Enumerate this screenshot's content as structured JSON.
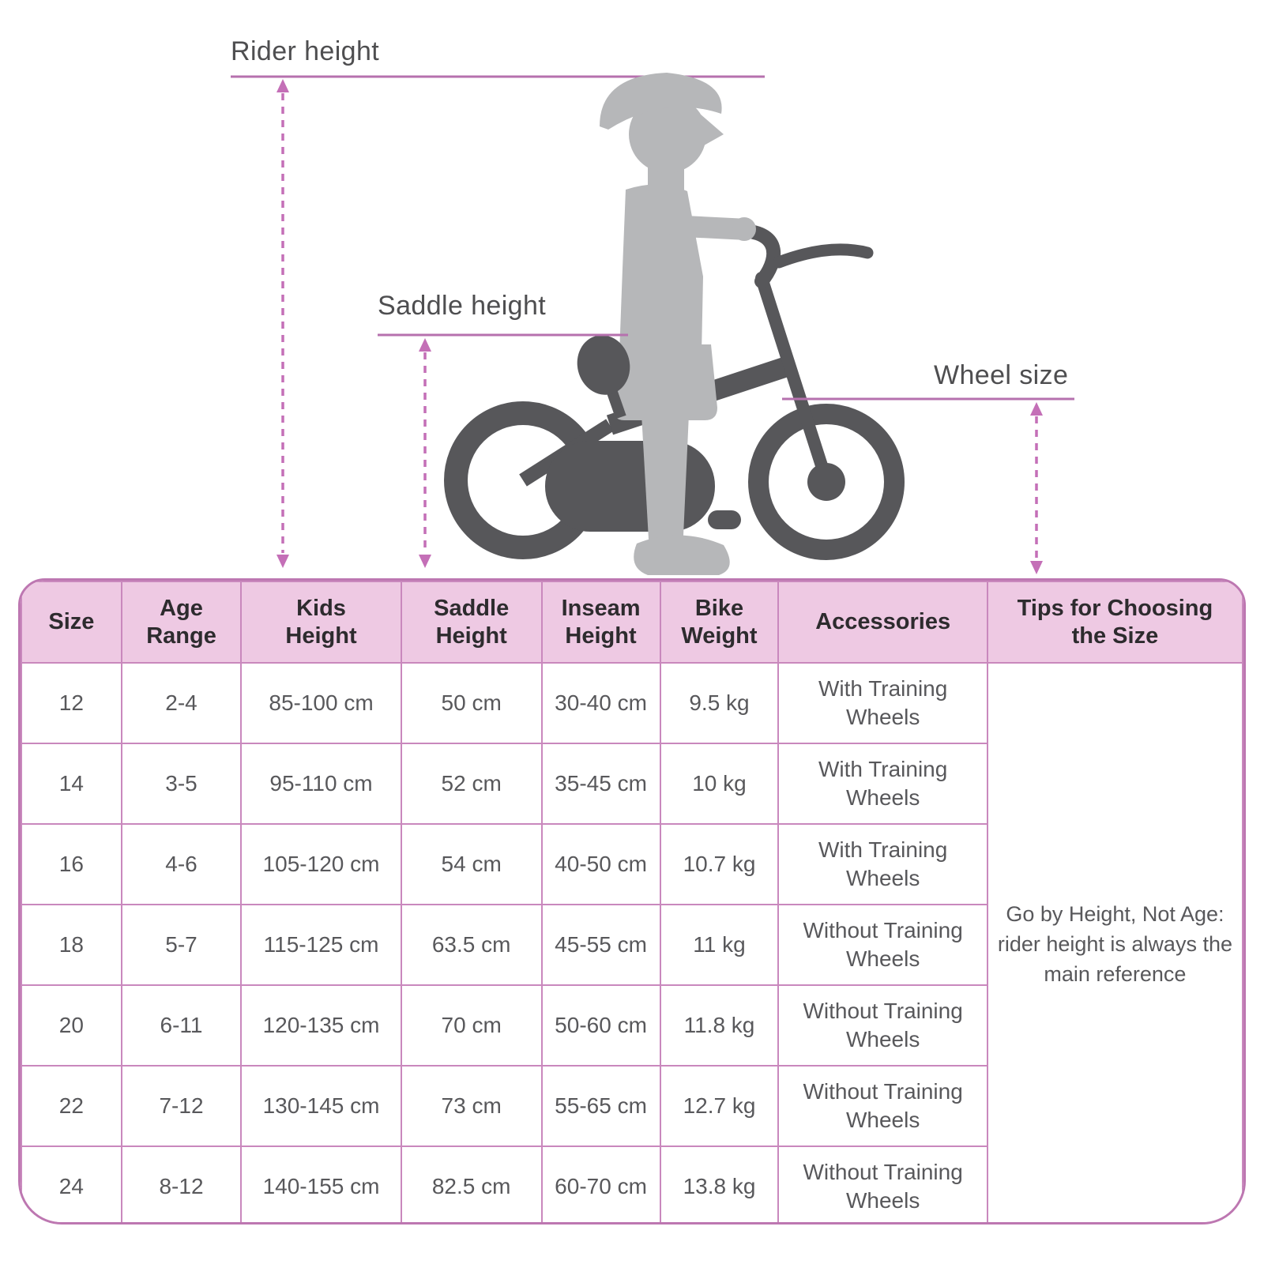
{
  "illustration": {
    "labels": {
      "rider": "Rider height",
      "saddle": "Saddle height",
      "wheel": "Wheel size"
    }
  },
  "table": {
    "columns": [
      {
        "key": "size",
        "label": "Size"
      },
      {
        "key": "age-range",
        "label": "Age\nRange"
      },
      {
        "key": "kids-height",
        "label": "Kids\nHeight"
      },
      {
        "key": "saddle-height",
        "label": "Saddle\nHeight"
      },
      {
        "key": "inseam-height",
        "label": "Inseam\nHeight"
      },
      {
        "key": "bike-weight",
        "label": "Bike\nWeight"
      },
      {
        "key": "accessories",
        "label": "Accessories"
      },
      {
        "key": "tips",
        "label": "Tips for Choosing\nthe Size"
      }
    ],
    "rows": [
      [
        "12",
        "2-4",
        "85-100 cm",
        "50 cm",
        "30-40 cm",
        "9.5 kg",
        "With Training\nWheels"
      ],
      [
        "14",
        "3-5",
        "95-110 cm",
        "52 cm",
        "35-45 cm",
        "10 kg",
        "With Training\nWheels"
      ],
      [
        "16",
        "4-6",
        "105-120 cm",
        "54 cm",
        "40-50 cm",
        "10.7 kg",
        "With Training\nWheels"
      ],
      [
        "18",
        "5-7",
        "115-125 cm",
        "63.5 cm",
        "45-55 cm",
        "11 kg",
        "Without Training\nWheels"
      ],
      [
        "20",
        "6-11",
        "120-135 cm",
        "70 cm",
        "50-60 cm",
        "11.8 kg",
        "Without Training\nWheels"
      ],
      [
        "22",
        "7-12",
        "130-145 cm",
        "73 cm",
        "55-65 cm",
        "12.7 kg",
        "Without Training\nWheels"
      ],
      [
        "24",
        "8-12",
        "140-155 cm",
        "82.5 cm",
        "60-70 cm",
        "13.8 kg",
        "Without Training\nWheels"
      ]
    ],
    "tips_text": "Go by Height, Not Age:\nrider height is always the\nmain reference"
  },
  "theme": {
    "header_bg": "#eec9e3",
    "table_border": "#c988bd",
    "table_outline": "#bd77b1",
    "measure_line": "#b671ae",
    "arrow": "#c46fb7",
    "kid": "#b6b7b9",
    "bike": "#57575a",
    "label_text": "#4e4e50",
    "header_text": "#2d2b2e",
    "cell_text": "#58585b"
  }
}
